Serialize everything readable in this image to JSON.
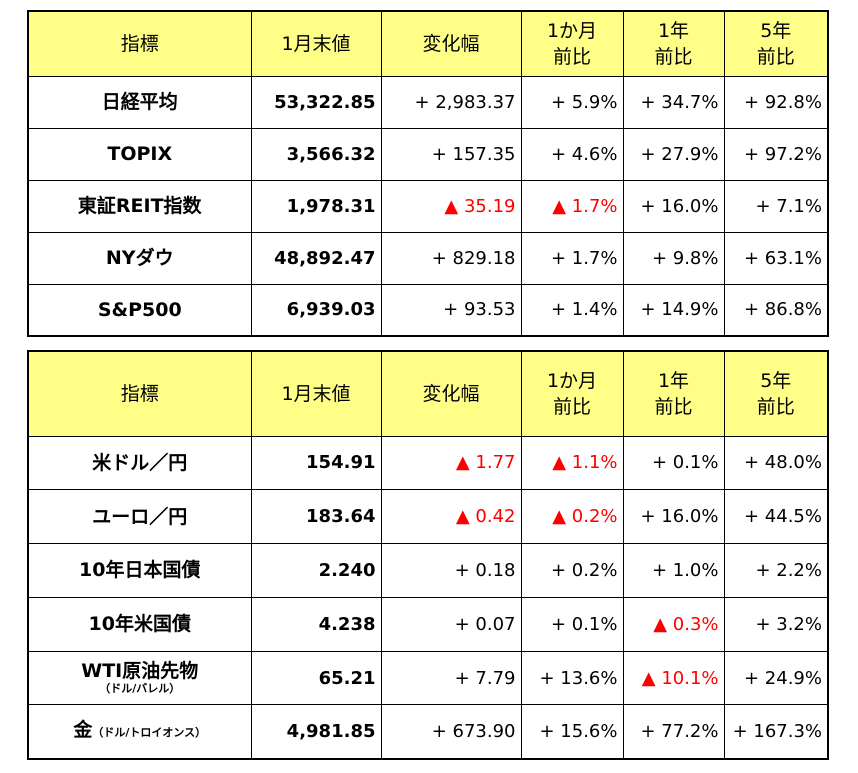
{
  "tables": [
    {
      "header": [
        "指標",
        "1月末値",
        "変化幅",
        "1か月\n前比",
        "1年\n前比",
        "5年\n前比"
      ],
      "rows": [
        [
          {
            "label": "日経平均"
          },
          "53,322.85",
          "+ 2,983.37",
          "+ 5.9%",
          "+ 34.7%",
          "+ 92.8%"
        ],
        [
          {
            "label": "TOPIX"
          },
          "3,566.32",
          "+ 157.35",
          "+ 4.6%",
          "+ 27.9%",
          "+ 97.2%"
        ],
        [
          {
            "label": "東証REIT指数"
          },
          "1,978.31",
          {
            "text": "▲ 35.19",
            "color": "#ff0000"
          },
          {
            "text": "▲ 1.7%",
            "color": "#ff0000"
          },
          "+ 16.0%",
          "+ 7.1%"
        ],
        [
          {
            "label": "NYダウ"
          },
          "48,892.47",
          "+ 829.18",
          "+ 1.7%",
          "+ 9.8%",
          "+ 63.1%"
        ],
        [
          {
            "label": "S&P500"
          },
          "6,939.03",
          "+ 93.53",
          "+ 1.4%",
          "+ 14.9%",
          "+ 86.8%"
        ]
      ]
    },
    {
      "header": [
        "指標",
        "1月末値",
        "変化幅",
        "1か月\n前比",
        "1年\n前比",
        "5年\n前比"
      ],
      "rows": [
        [
          {
            "label": "米ドル／円"
          },
          "154.91",
          {
            "text": "▲ 1.77",
            "color": "#ff0000"
          },
          {
            "text": "▲ 1.1%",
            "color": "#ff0000"
          },
          "+ 0.1%",
          "+ 48.0%"
        ],
        [
          {
            "label": "ユーロ／円"
          },
          "183.64",
          {
            "text": "▲ 0.42",
            "color": "#ff0000"
          },
          {
            "text": "▲ 0.2%",
            "color": "#ff0000"
          },
          "+ 16.0%",
          "+ 44.5%"
        ],
        [
          {
            "label": "10年日本国債"
          },
          "2.240",
          "+ 0.18",
          "+ 0.2%",
          "+ 1.0%",
          "+ 2.2%"
        ],
        [
          {
            "label": "10年米国債"
          },
          "4.238",
          "+ 0.07",
          "+ 0.1%",
          {
            "text": "▲ 0.3%",
            "color": "#ff0000"
          },
          "+ 3.2%"
        ],
        [
          {
            "label": "WTI原油先物",
            "note": "（ドル/バレル）",
            "note_below": true
          },
          "65.21",
          "+ 7.79",
          "+ 13.6%",
          {
            "text": "▲ 10.1%",
            "color": "#ff0000"
          },
          "+ 24.9%"
        ],
        [
          {
            "label": "金",
            "note": "（ドル/トロイオンス）"
          },
          "4,981.85",
          "+ 673.90",
          "+ 15.6%",
          "+ 77.2%",
          "+ 167.3%"
        ]
      ]
    }
  ]
}
